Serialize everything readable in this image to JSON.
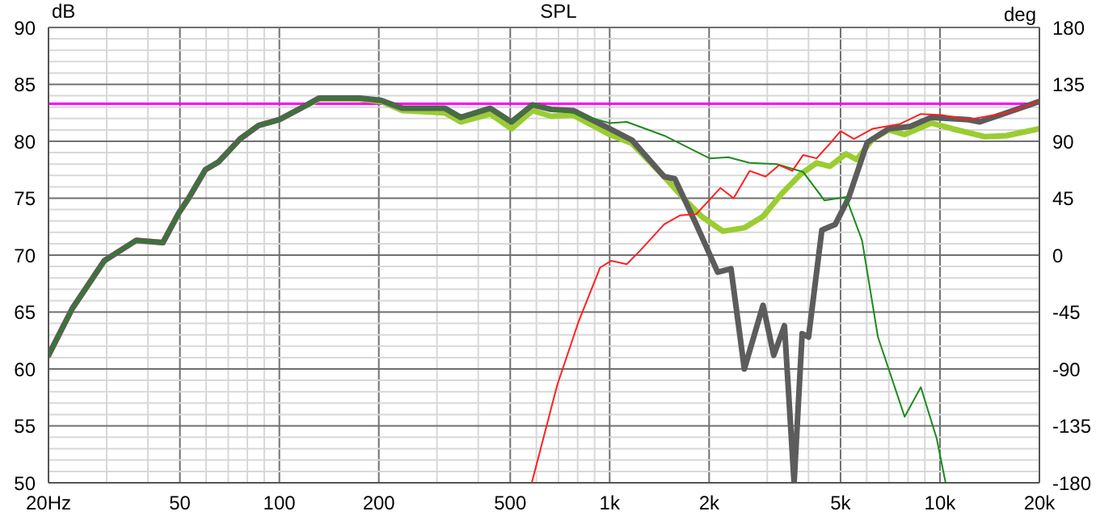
{
  "chart_data": {
    "type": "line",
    "title": "SPL",
    "ylabel": "dB",
    "y2label": "deg",
    "log": "x",
    "grid": true,
    "line_style": "solid",
    "marker": "none",
    "xlim": [
      20,
      20000
    ],
    "xticks": [
      {
        "value": 20,
        "label": "20Hz"
      },
      {
        "value": 30,
        "label": null
      },
      {
        "value": 40,
        "label": null
      },
      50,
      {
        "value": 60,
        "label": null
      },
      {
        "value": 70,
        "label": null
      },
      {
        "value": 80,
        "label": null
      },
      {
        "value": 90,
        "label": null
      },
      100,
      200,
      {
        "value": 300,
        "label": null
      },
      {
        "value": 400,
        "label": null
      },
      500,
      {
        "value": 600,
        "label": null
      },
      {
        "value": 700,
        "label": null
      },
      {
        "value": 800,
        "label": null
      },
      {
        "value": 900,
        "label": null
      },
      {
        "value": 1000,
        "label": "1k"
      },
      {
        "value": 2000,
        "label": "2k"
      },
      {
        "value": 3000,
        "label": null
      },
      {
        "value": 4000,
        "label": null
      },
      {
        "value": 5000,
        "label": "5k"
      },
      {
        "value": 6000,
        "label": null
      },
      {
        "value": 7000,
        "label": null
      },
      {
        "value": 8000,
        "label": null
      },
      {
        "value": 9000,
        "label": null
      },
      {
        "value": 10000,
        "label": "10k"
      },
      {
        "value": 20000,
        "label": "20k"
      }
    ],
    "ylim": [
      50,
      90
    ],
    "yticks": [
      50,
      {
        "value": 51,
        "label": null
      },
      {
        "value": 52,
        "label": null
      },
      {
        "value": 53,
        "label": null
      },
      {
        "value": 54,
        "label": null
      },
      55,
      {
        "value": 56,
        "label": null
      },
      {
        "value": 57,
        "label": null
      },
      {
        "value": 58,
        "label": null
      },
      {
        "value": 59,
        "label": null
      },
      60,
      {
        "value": 61,
        "label": null
      },
      {
        "value": 62,
        "label": null
      },
      {
        "value": 63,
        "label": null
      },
      {
        "value": 64,
        "label": null
      },
      65,
      {
        "value": 66,
        "label": null
      },
      {
        "value": 67,
        "label": null
      },
      {
        "value": 68,
        "label": null
      },
      {
        "value": 69,
        "label": null
      },
      70,
      {
        "value": 71,
        "label": null
      },
      {
        "value": 72,
        "label": null
      },
      {
        "value": 73,
        "label": null
      },
      {
        "value": 74,
        "label": null
      },
      75,
      {
        "value": 76,
        "label": null
      },
      {
        "value": 77,
        "label": null
      },
      {
        "value": 78,
        "label": null
      },
      {
        "value": 79,
        "label": null
      },
      80,
      {
        "value": 81,
        "label": null
      },
      {
        "value": 82,
        "label": null
      },
      {
        "value": 83,
        "label": null
      },
      {
        "value": 84,
        "label": null
      },
      85,
      {
        "value": 86,
        "label": null
      },
      {
        "value": 87,
        "label": null
      },
      {
        "value": 88,
        "label": null
      },
      {
        "value": 89,
        "label": null
      },
      90
    ],
    "y2lim": [
      -180,
      180
    ],
    "y2ticks": [
      -180,
      -135,
      -90,
      -45,
      0,
      45,
      90,
      135,
      180
    ],
    "ref_lines": [
      {
        "axis": "y",
        "value": 83.3,
        "color": "#ff00ff"
      }
    ],
    "series": [
      {
        "color": "#9acd32",
        "x": [
          20,
          23.6,
          29.5,
          36.9,
          44.4,
          49.6,
          53.4,
          59.7,
          65.5,
          76,
          86.6,
          100,
          116,
          132,
          175,
          203,
          236,
          317,
          354,
          435,
          504,
          584,
          665,
          776,
          1000,
          1169,
          1462,
          1698,
          1898,
          2203,
          2557,
          2913,
          3319,
          3783,
          4230,
          4642,
          5192,
          5598,
          6257,
          6995,
          7818,
          9413,
          10900,
          13700,
          15900,
          20000
        ],
        "values": [
          61.2,
          65.3,
          69.5,
          71.3,
          71.1,
          73.7,
          75.1,
          77.5,
          78.2,
          80.2,
          81.4,
          81.9,
          82.9,
          83.7,
          83.7,
          83.5,
          82.7,
          82.5,
          81.7,
          82.4,
          81.1,
          82.7,
          82.2,
          82.3,
          80.6,
          79.8,
          76.9,
          74.8,
          73.4,
          72.1,
          72.4,
          73.4,
          75.4,
          77.1,
          78.1,
          77.8,
          78.9,
          78.4,
          80.2,
          81.0,
          80.6,
          81.6,
          81.1,
          80.4,
          80.5,
          81.1
        ]
      },
      {
        "color": "#5c5c5c",
        "x": [
          20,
          23.6,
          29.5,
          36.9,
          44.4,
          49.6,
          53.4,
          59.7,
          65.5,
          76,
          86.6,
          100,
          116,
          132,
          175,
          203,
          236,
          317,
          354,
          435,
          504,
          584,
          665,
          776,
          1000,
          1169,
          1462,
          1575,
          1829,
          2123,
          2330,
          2557,
          2913,
          3138,
          3382,
          3617,
          3826,
          4000,
          4389,
          4819,
          5285,
          6025,
          6995,
          8112,
          9413,
          12200,
          13200,
          15900,
          20000
        ],
        "values": [
          61.2,
          65.3,
          69.5,
          71.3,
          71.1,
          73.7,
          75.1,
          77.5,
          78.2,
          80.2,
          81.4,
          81.9,
          82.9,
          83.8,
          83.8,
          83.6,
          82.9,
          82.9,
          82.1,
          82.9,
          81.7,
          83.2,
          82.8,
          82.7,
          81.1,
          80.1,
          76.9,
          76.7,
          72.7,
          68.5,
          68.8,
          60.0,
          65.6,
          61.2,
          63.8,
          50.0,
          63.1,
          62.8,
          72.2,
          72.7,
          75.0,
          79.9,
          81.1,
          81.3,
          82.1,
          81.9,
          81.7,
          82.5,
          83.5
        ]
      },
      {
        "color": "#1e8a1e",
        "x": [
          20,
          23.6,
          29.5,
          36.9,
          44.4,
          49.6,
          53.4,
          59.7,
          65.5,
          76,
          86.6,
          100,
          116,
          132,
          175,
          203,
          236,
          317,
          354,
          435,
          504,
          584,
          665,
          776,
          1000,
          1126,
          1462,
          2008,
          2286,
          2653,
          3199,
          3854,
          4470,
          5192,
          5808,
          6490,
          7818,
          8750,
          9772,
          10400
        ],
        "values": [
          61.2,
          65.3,
          69.5,
          71.3,
          71.1,
          73.7,
          75.1,
          77.5,
          78.2,
          80.2,
          81.4,
          81.9,
          82.9,
          83.8,
          83.8,
          83.6,
          82.9,
          82.9,
          82.1,
          82.9,
          81.7,
          83.2,
          82.8,
          82.5,
          81.6,
          81.7,
          80.5,
          78.5,
          78.6,
          78.1,
          78.0,
          77.3,
          74.8,
          75.1,
          71.3,
          62.8,
          55.8,
          58.4,
          53.9,
          50.0
        ]
      },
      {
        "color": "#ff2020",
        "x": [
          581,
          694,
          806,
          935,
          1010,
          1126,
          1237,
          1462,
          1636,
          1829,
          2163,
          2372,
          2653,
          2965,
          3258,
          3573,
          3854,
          4230,
          4642,
          5001,
          5492,
          6257,
          7534,
          8750,
          10100,
          12200,
          15900,
          20000
        ],
        "values": [
          50,
          58.6,
          64.2,
          68.9,
          69.5,
          69.2,
          70.4,
          72.7,
          73.5,
          73.6,
          75.9,
          75.0,
          77.4,
          76.9,
          77.9,
          77.4,
          78.8,
          78.5,
          79.8,
          80.9,
          80.2,
          81.1,
          81.5,
          82.4,
          82.3,
          81.9,
          82.5,
          83.5
        ]
      }
    ]
  }
}
